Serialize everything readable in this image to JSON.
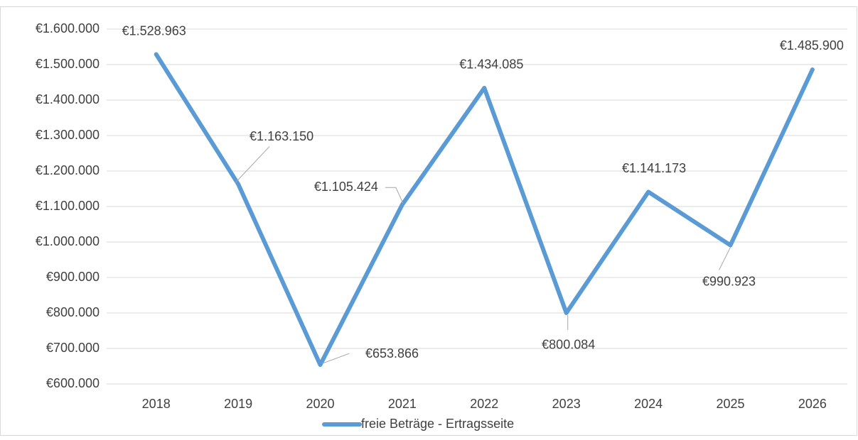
{
  "chart_data": {
    "type": "line",
    "categories": [
      "2018",
      "2019",
      "2020",
      "2021",
      "2022",
      "2023",
      "2024",
      "2025",
      "2026"
    ],
    "series": [
      {
        "name": "freie Beträge - Ertragsseite",
        "color": "#5b9bd5",
        "values": [
          1528963,
          1163150,
          653866,
          1105424,
          1434085,
          800084,
          1141173,
          990923,
          1485900
        ],
        "value_labels": [
          "€1.528.963",
          "€1.163.150",
          "€653.866",
          "€1.105.424",
          "€1.434.085",
          "€800.084",
          "€1.141.173",
          "€990.923",
          "€1.485.900"
        ]
      }
    ],
    "ylim": [
      600000,
      1600000
    ],
    "yticks": [
      {
        "value": 600000,
        "label": "€600.000"
      },
      {
        "value": 700000,
        "label": "€700.000"
      },
      {
        "value": 800000,
        "label": "€800.000"
      },
      {
        "value": 900000,
        "label": "€900.000"
      },
      {
        "value": 1000000,
        "label": "€1.000.000"
      },
      {
        "value": 1100000,
        "label": "€1.100.000"
      },
      {
        "value": 1200000,
        "label": "€1.200.000"
      },
      {
        "value": 1300000,
        "label": "€1.300.000"
      },
      {
        "value": 1400000,
        "label": "€1.400.000"
      },
      {
        "value": 1500000,
        "label": "€1.500.000"
      },
      {
        "value": 1600000,
        "label": "€1.600.000"
      }
    ],
    "grid": true,
    "legend": "bottom"
  }
}
